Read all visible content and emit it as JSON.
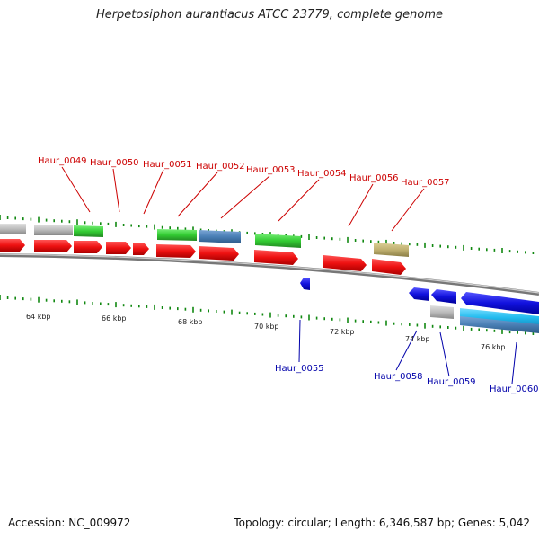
{
  "title": "Herpetosiphon aurantiacus ATCC 23779, complete genome",
  "footer": {
    "accession": "Accession: NC_009972",
    "summary": "Topology: circular; Length: 6,346,587 bp; Genes: 5,042"
  },
  "colors": {
    "cds_forward": "#ee1111",
    "cds_reverse": "#1111dd",
    "rna_green": "#33cc33",
    "steelblue": "#4a7fb5",
    "cyan": "#22bbee",
    "gray": "#bbbbbb",
    "khaki": "#bfb070",
    "tick": "#118811",
    "label_top": "#cc0000",
    "label_bottom": "#0000aa"
  },
  "scale_labels": [
    "64 kbp",
    "66 kbp",
    "68 kbp",
    "70 kbp",
    "72 kbp",
    "74 kbp",
    "76 kbp"
  ],
  "genes_top": [
    {
      "id": "Haur_0049"
    },
    {
      "id": "Haur_0050"
    },
    {
      "id": "Haur_0051"
    },
    {
      "id": "Haur_0052"
    },
    {
      "id": "Haur_0053"
    },
    {
      "id": "Haur_0054"
    },
    {
      "id": "Haur_0056"
    },
    {
      "id": "Haur_0057"
    }
  ],
  "genes_bottom": [
    {
      "id": "Haur_0055"
    },
    {
      "id": "Haur_0058"
    },
    {
      "id": "Haur_0059"
    },
    {
      "id": "Haur_0060"
    }
  ]
}
